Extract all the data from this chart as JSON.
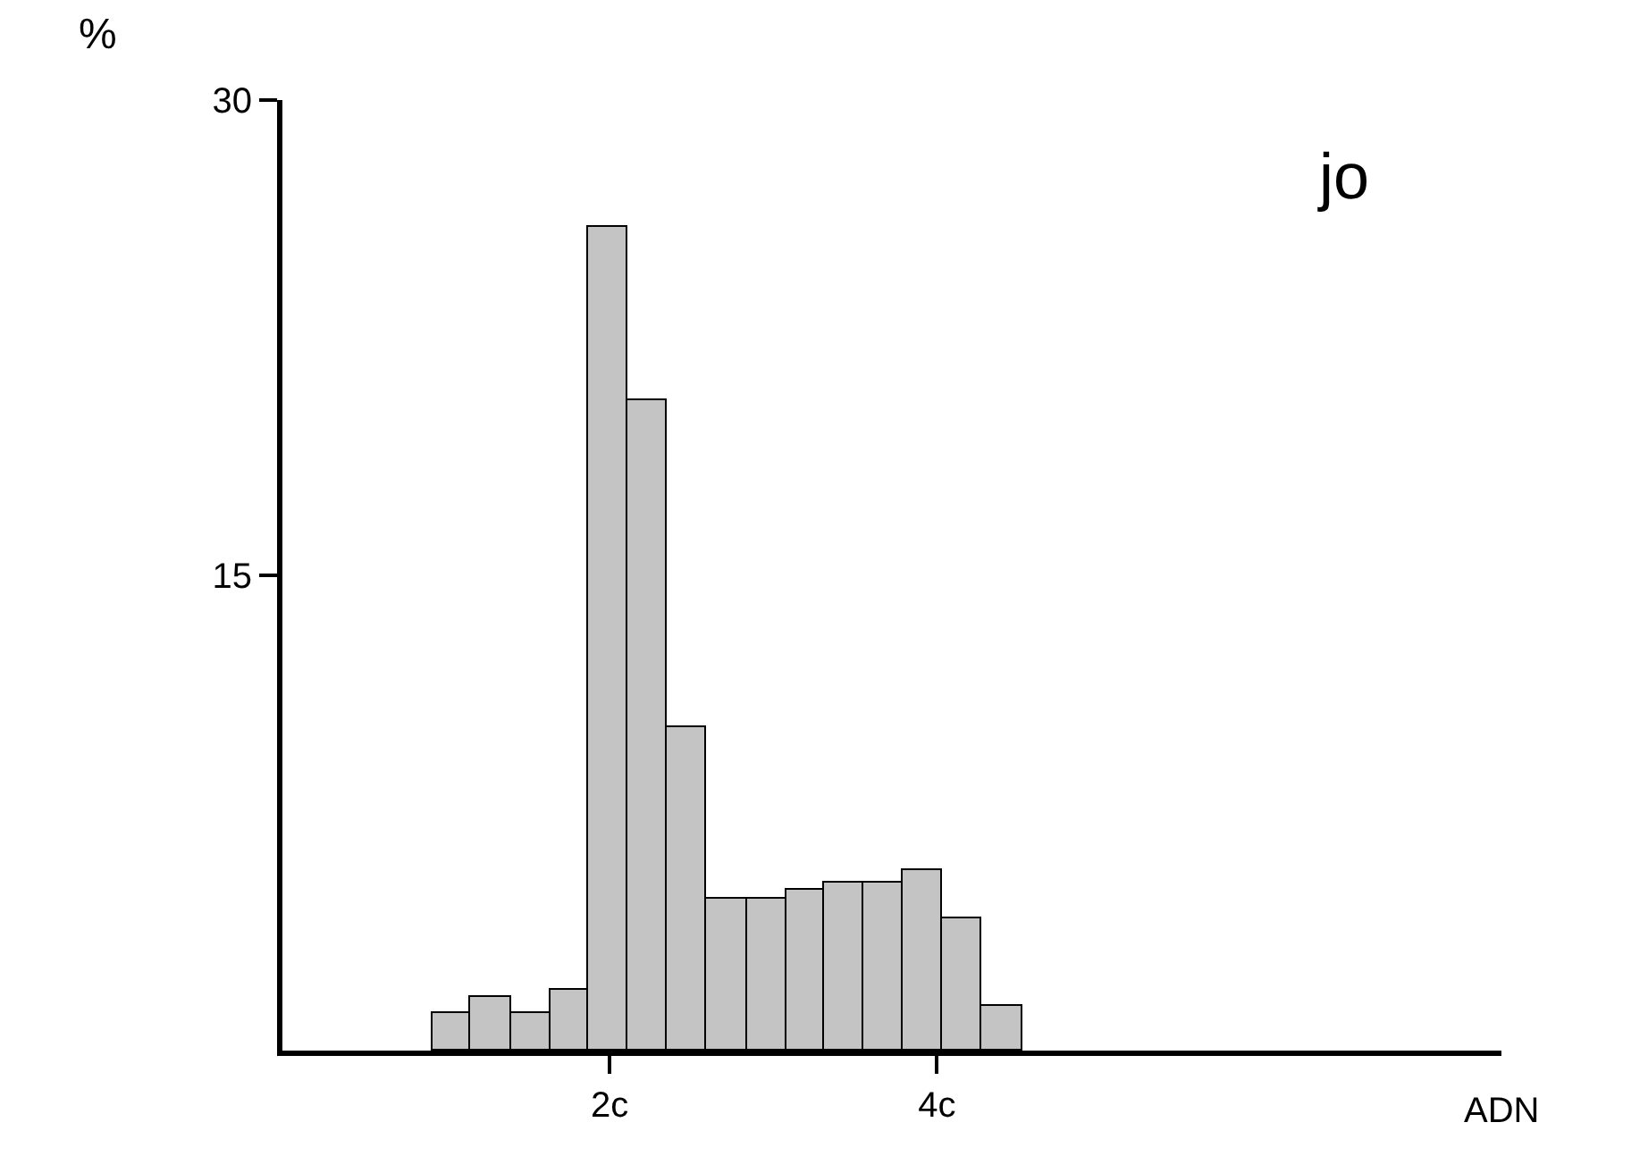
{
  "chart_data": {
    "type": "histogram",
    "ylabel": "%",
    "xlabel": "ADN",
    "annotations": [
      "jo"
    ],
    "bins": [
      0.92,
      1.15,
      1.4,
      1.64,
      1.87,
      2.11,
      2.35,
      2.59,
      2.84,
      3.08,
      3.31,
      3.55,
      3.79,
      4.03,
      4.27,
      4.52
    ],
    "values": [
      1.2,
      1.7,
      1.2,
      1.9,
      26,
      20.5,
      10.2,
      4.8,
      4.8,
      5.1,
      5.3,
      5.3,
      5.7,
      4.2,
      1.4
    ],
    "color": "#c4c4c4",
    "xlim": [
      0,
      7.45
    ],
    "xticks": [
      {
        "value": 2,
        "label": "2c"
      },
      {
        "value": 4,
        "label": "4c"
      }
    ],
    "ylim": [
      0,
      30
    ],
    "yticks": [
      15,
      30
    ]
  }
}
